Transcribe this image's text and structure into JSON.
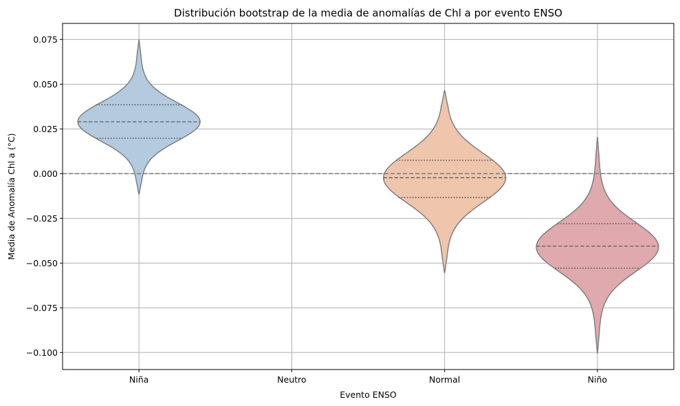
{
  "chart_data": {
    "type": "violin",
    "title": "Distribución bootstrap de la media de anomalías de Chl a por evento ENSO",
    "xlabel": "Evento ENSO",
    "ylabel": "Media de Anomalía Chl a (°C)",
    "categories": [
      "Niña",
      "Neutro",
      "Normal",
      "Niño"
    ],
    "ylim": [
      -0.1095,
      0.084
    ],
    "yticks": [
      -0.1,
      -0.075,
      -0.05,
      -0.025,
      0.0,
      0.025,
      0.05,
      0.075
    ],
    "ytick_labels": [
      "−0.100",
      "−0.075",
      "−0.050",
      "−0.025",
      "0.000",
      "0.025",
      "0.050",
      "0.075"
    ],
    "grid": true,
    "reference_line": {
      "y": 0.0,
      "style": "dashed",
      "color": "#808080"
    },
    "series": [
      {
        "category": "Niña",
        "color": "#b3cadf",
        "min": -0.0115,
        "max": 0.075,
        "q1": 0.0198,
        "median": 0.029,
        "q3": 0.0385,
        "mode": 0.029,
        "spread": 0.0105
      },
      {
        "category": "Neutro",
        "color": "",
        "min": null,
        "max": null,
        "q1": null,
        "median": null,
        "q3": null
      },
      {
        "category": "Normal",
        "color": "#efc5ac",
        "min": -0.0555,
        "max": 0.0465,
        "q1": -0.0133,
        "median": -0.0023,
        "q3": 0.0075,
        "mode": -0.0023,
        "spread": 0.0135
      },
      {
        "category": "Niño",
        "color": "#dfa9ad",
        "min": -0.1005,
        "max": 0.0205,
        "q1": -0.0528,
        "median": -0.0405,
        "q3": -0.028,
        "mode": -0.041,
        "spread": 0.0135
      }
    ],
    "colors": {
      "outline": "#7f7f7f",
      "grid": "#b0b0b0",
      "spine": "#000000"
    }
  }
}
